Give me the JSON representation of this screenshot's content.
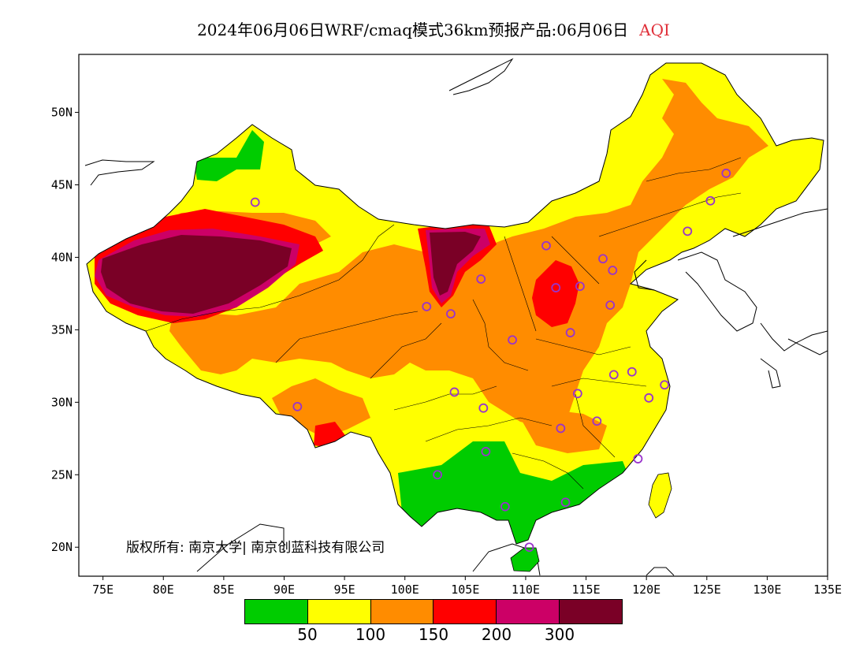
{
  "title": {
    "main": "2024年06月06日WRF/cmaq模式36km预报产品:06月06日",
    "pollutant": "AQI"
  },
  "map": {
    "x_axis": {
      "ticks": [
        "75E",
        "80E",
        "85E",
        "90E",
        "95E",
        "100E",
        "105E",
        "110E",
        "115E",
        "120E",
        "125E",
        "130E",
        "135E"
      ],
      "range": [
        73,
        135
      ]
    },
    "y_axis": {
      "ticks": [
        "20N",
        "25N",
        "30N",
        "35N",
        "40N",
        "45N",
        "50N"
      ],
      "range": [
        18,
        54
      ]
    },
    "copyright": "版权所有: 南京大学| 南京创蓝科技有限公司",
    "colors": {
      "ocean": "#ffffff",
      "level_50": "#00cc00",
      "level_100": "#ffff00",
      "level_150": "#ff8c00",
      "level_200": "#ff0000",
      "level_300": "#cc0066",
      "level_max": "#7a0026",
      "station": "#9933cc"
    },
    "stations": [
      {
        "lon": 87.6,
        "lat": 43.8
      },
      {
        "lon": 91.1,
        "lat": 29.7
      },
      {
        "lon": 101.8,
        "lat": 36.6
      },
      {
        "lon": 103.8,
        "lat": 36.1
      },
      {
        "lon": 106.3,
        "lat": 38.5
      },
      {
        "lon": 111.7,
        "lat": 40.8
      },
      {
        "lon": 112.5,
        "lat": 37.9
      },
      {
        "lon": 114.5,
        "lat": 38.0
      },
      {
        "lon": 116.4,
        "lat": 39.9
      },
      {
        "lon": 117.2,
        "lat": 39.1
      },
      {
        "lon": 117.0,
        "lat": 36.7
      },
      {
        "lon": 113.7,
        "lat": 34.8
      },
      {
        "lon": 108.9,
        "lat": 34.3
      },
      {
        "lon": 104.1,
        "lat": 30.7
      },
      {
        "lon": 106.5,
        "lat": 29.6
      },
      {
        "lon": 106.7,
        "lat": 26.6
      },
      {
        "lon": 102.7,
        "lat": 25.0
      },
      {
        "lon": 108.3,
        "lat": 22.8
      },
      {
        "lon": 110.3,
        "lat": 20.0
      },
      {
        "lon": 113.3,
        "lat": 23.1
      },
      {
        "lon": 112.9,
        "lat": 28.2
      },
      {
        "lon": 115.9,
        "lat": 28.7
      },
      {
        "lon": 114.3,
        "lat": 30.6
      },
      {
        "lon": 117.3,
        "lat": 31.9
      },
      {
        "lon": 118.8,
        "lat": 32.1
      },
      {
        "lon": 121.5,
        "lat": 31.2
      },
      {
        "lon": 120.2,
        "lat": 30.3
      },
      {
        "lon": 119.3,
        "lat": 26.1
      },
      {
        "lon": 123.4,
        "lat": 41.8
      },
      {
        "lon": 125.3,
        "lat": 43.9
      },
      {
        "lon": 126.6,
        "lat": 45.8
      }
    ]
  },
  "legend": {
    "colors": [
      "#00cc00",
      "#ffff00",
      "#ff8c00",
      "#ff0000",
      "#cc0066",
      "#7a0026"
    ],
    "labels": [
      "50",
      "100",
      "150",
      "200",
      "300"
    ]
  }
}
